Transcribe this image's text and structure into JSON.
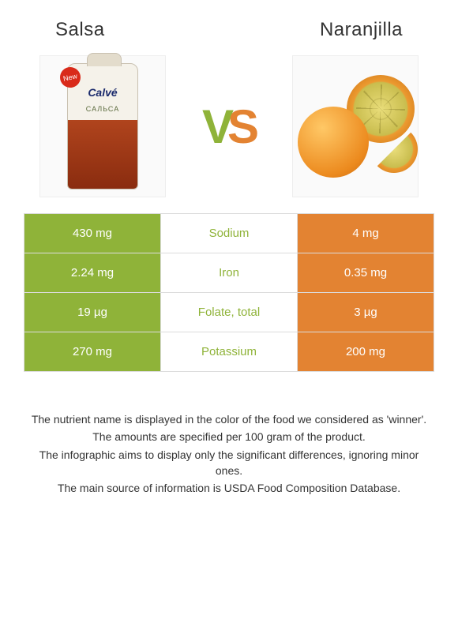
{
  "colors": {
    "salsa": "#8fb339",
    "naranjilla": "#e38332",
    "text_winner_salsa": "#8fb339",
    "text_winner_naranjilla": "#e38332",
    "border": "#dcdcdc",
    "body_text": "#333333"
  },
  "foods": {
    "left": {
      "name": "Salsa",
      "img_alt": "Calvé Salsa sauce packet",
      "brand": "Calvé",
      "sublabel": "САЛЬСА",
      "badge": "New"
    },
    "right": {
      "name": "Naranjilla",
      "img_alt": "Naranjilla fruit whole and halved"
    }
  },
  "vs": {
    "v": "V",
    "s": "S"
  },
  "table": {
    "rows": [
      {
        "left": "430 mg",
        "label": "Sodium",
        "right": "4 mg",
        "winner": "salsa"
      },
      {
        "left": "2.24 mg",
        "label": "Iron",
        "right": "0.35 mg",
        "winner": "salsa"
      },
      {
        "left": "19 µg",
        "label": "Folate, total",
        "right": "3 µg",
        "winner": "salsa"
      },
      {
        "left": "270 mg",
        "label": "Potassium",
        "right": "200 mg",
        "winner": "salsa"
      }
    ]
  },
  "footer": {
    "lines": [
      "The nutrient name is displayed in the color of the food we considered as 'winner'.",
      "The amounts are specified per 100 gram of the product.",
      "The infographic aims to display only the significant differences, ignoring minor ones.",
      "The main source of information is USDA Food Composition Database."
    ]
  }
}
